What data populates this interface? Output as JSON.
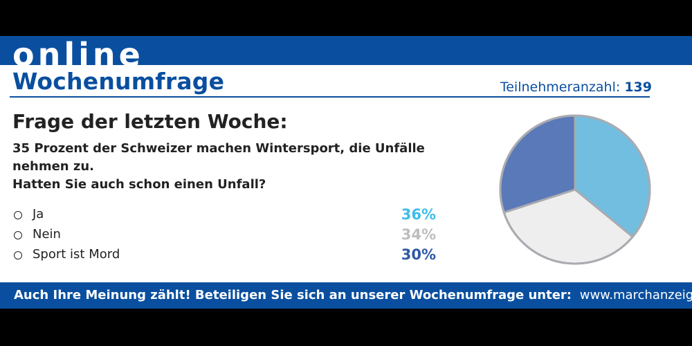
{
  "header": {
    "brand": "online",
    "title": "Wochenumfrage",
    "participants_label": "Teilnehmeranzahl:",
    "participants_count": "139"
  },
  "colors": {
    "brand_blue": "#0a4f9f",
    "ja": "#72bee0",
    "nein": "#eeeeee",
    "sport": "#5a79b9",
    "ja_text": "#3dbde8",
    "nein_text": "#bdbdbd",
    "sport_text": "#2f58a6"
  },
  "poll": {
    "heading": "Frage der letzten Woche:",
    "question_line1": "35 Prozent der Schweizer machen Wintersport, die Unfälle nehmen zu.",
    "question_line2": "Hatten Sie auch schon einen Unfall?"
  },
  "chart_data": {
    "type": "pie",
    "categories": [
      "Ja",
      "Nein",
      "Sport ist Mord"
    ],
    "values": [
      36,
      34,
      30
    ],
    "value_labels": [
      "36%",
      "34%",
      "30%"
    ],
    "unit": "%",
    "legend": "left"
  },
  "footer": {
    "cta": "Auch Ihre Meinung zählt! Beteiligen Sie sich an unserer Wochenumfrage unter:",
    "url": "www.marchanzeig"
  }
}
